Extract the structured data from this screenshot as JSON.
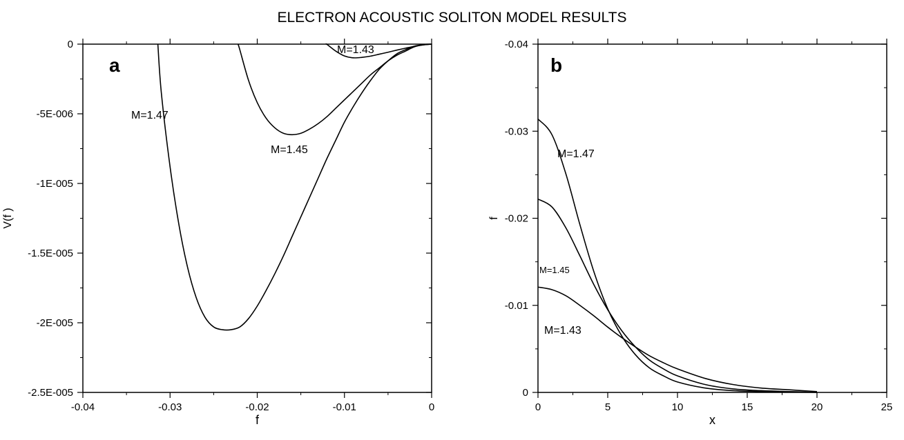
{
  "title": "ELECTRON ACOUSTIC SOLITON MODEL RESULTS",
  "chart_data": [
    {
      "type": "line",
      "panel_label": "a",
      "xlabel": "f",
      "ylabel": "V(f )",
      "xlim": [
        -0.04,
        0
      ],
      "ylim": [
        -2.5e-05,
        0
      ],
      "x_ticks": [
        -0.04,
        -0.03,
        -0.02,
        -0.01,
        0
      ],
      "x_tick_labels": [
        "-0.04",
        "-0.03",
        "-0.02",
        "-0.01",
        "0"
      ],
      "y_ticks": [
        0,
        -5e-06,
        -1e-05,
        -1.5e-05,
        -2e-05,
        -2.5e-05
      ],
      "y_tick_labels": [
        "0",
        "-5E-006",
        "-1E-005",
        "-1.5E-005",
        "-2E-005",
        "-2.5E-005"
      ],
      "grid": false,
      "series": [
        {
          "name": "M=1.47",
          "x": [
            -0.0314,
            -0.031,
            -0.03,
            -0.029,
            -0.028,
            -0.027,
            -0.026,
            -0.025,
            -0.024,
            -0.023,
            -0.022,
            -0.021,
            -0.02,
            -0.019,
            -0.018,
            -0.017,
            -0.016,
            -0.015,
            -0.014,
            -0.013,
            -0.012,
            -0.011,
            -0.01,
            -0.009,
            -0.008,
            -0.007,
            -0.006,
            -0.005,
            -0.004,
            -0.003,
            -0.002,
            -0.001,
            0
          ],
          "y": [
            0,
            -3.5e-06,
            -8.8e-06,
            -1.29e-05,
            -1.6e-05,
            -1.82e-05,
            -1.96e-05,
            -2.03e-05,
            -2.05e-05,
            -2.05e-05,
            -2.03e-05,
            -1.97e-05,
            -1.88e-05,
            -1.77e-05,
            -1.65e-05,
            -1.52e-05,
            -1.38e-05,
            -1.24e-05,
            -1.1e-05,
            -9.6e-06,
            -8.2e-06,
            -6.9e-06,
            -5.6e-06,
            -4.5e-06,
            -3.5e-06,
            -2.6e-06,
            -1.8e-06,
            -1.2e-06,
            -7e-07,
            -4e-07,
            -1.5e-07,
            -4e-08,
            0
          ]
        },
        {
          "name": "M=1.45",
          "x": [
            -0.0222,
            -0.022,
            -0.021,
            -0.02,
            -0.019,
            -0.018,
            -0.017,
            -0.016,
            -0.015,
            -0.014,
            -0.013,
            -0.012,
            -0.011,
            -0.01,
            -0.009,
            -0.008,
            -0.007,
            -0.006,
            -0.005,
            -0.004,
            -0.003,
            -0.002,
            -0.001,
            0
          ],
          "y": [
            0,
            -4e-07,
            -2.6e-06,
            -4.2e-06,
            -5.3e-06,
            -6e-06,
            -6.4e-06,
            -6.5e-06,
            -6.4e-06,
            -6.1e-06,
            -5.7e-06,
            -5.2e-06,
            -4.6e-06,
            -4e-06,
            -3.4e-06,
            -2.8e-06,
            -2.2e-06,
            -1.7e-06,
            -1.2e-06,
            -8e-07,
            -5e-07,
            -2e-07,
            -5e-08,
            0
          ]
        },
        {
          "name": "M=1.43",
          "x": [
            -0.0121,
            -0.012,
            -0.011,
            -0.01,
            -0.009,
            -0.008,
            -0.007,
            -0.006,
            -0.005,
            -0.004,
            -0.003,
            -0.002,
            -0.001,
            0
          ],
          "y": [
            0,
            -2e-08,
            -5e-07,
            -8.5e-07,
            -9.8e-07,
            -9.5e-07,
            -8.6e-07,
            -7.2e-07,
            -5.8e-07,
            -4.3e-07,
            -2.9e-07,
            -1.6e-07,
            -6e-08,
            0
          ]
        }
      ],
      "annotations": [
        "M=1.47",
        "M=1.45",
        "M=1.43"
      ]
    },
    {
      "type": "line",
      "panel_label": "b",
      "xlabel": "x",
      "ylabel": "f",
      "xlim": [
        0,
        25
      ],
      "ylim": [
        0,
        -0.04
      ],
      "x_ticks": [
        0,
        5,
        10,
        15,
        20,
        25
      ],
      "x_tick_labels": [
        "0",
        "5",
        "10",
        "15",
        "20",
        "25"
      ],
      "y_ticks": [
        0,
        -0.01,
        -0.02,
        -0.03,
        -0.04
      ],
      "y_tick_labels": [
        "0",
        "-0.01",
        "-0.02",
        "-0.03",
        "-0.04"
      ],
      "grid": false,
      "series": [
        {
          "name": "M=1.47",
          "x": [
            0,
            1,
            2,
            3,
            4,
            5,
            6,
            7,
            8,
            9,
            10,
            12,
            14,
            16,
            18,
            20
          ],
          "y": [
            -0.0314,
            -0.0296,
            -0.0251,
            -0.0193,
            -0.0139,
            -0.0096,
            -0.0065,
            -0.0043,
            -0.0028,
            -0.0019,
            -0.0012,
            -0.0005,
            -0.0002,
            -0.0001,
            -4e-05,
            0
          ]
        },
        {
          "name": "M=1.45",
          "x": [
            0,
            1,
            2,
            3,
            4,
            5,
            6,
            7,
            8,
            9,
            10,
            12,
            14,
            16,
            18,
            20
          ],
          "y": [
            -0.0222,
            -0.0213,
            -0.0189,
            -0.0157,
            -0.0124,
            -0.0095,
            -0.0071,
            -0.0052,
            -0.0037,
            -0.0027,
            -0.0019,
            -0.0009,
            -0.0004,
            -0.0002,
            -0.0001,
            0
          ]
        },
        {
          "name": "M=1.43",
          "x": [
            0,
            1,
            2,
            3,
            4,
            5,
            6,
            7,
            8,
            9,
            10,
            12,
            14,
            16,
            18,
            20
          ],
          "y": [
            -0.0121,
            -0.0118,
            -0.0111,
            -0.01,
            -0.0088,
            -0.0075,
            -0.0063,
            -0.0052,
            -0.0042,
            -0.0034,
            -0.0027,
            -0.0016,
            -0.0009,
            -0.0005,
            -0.0003,
            -0.0001
          ]
        }
      ],
      "annotations": [
        "M=1.47",
        "M=1.45",
        "M=1.43"
      ]
    }
  ]
}
